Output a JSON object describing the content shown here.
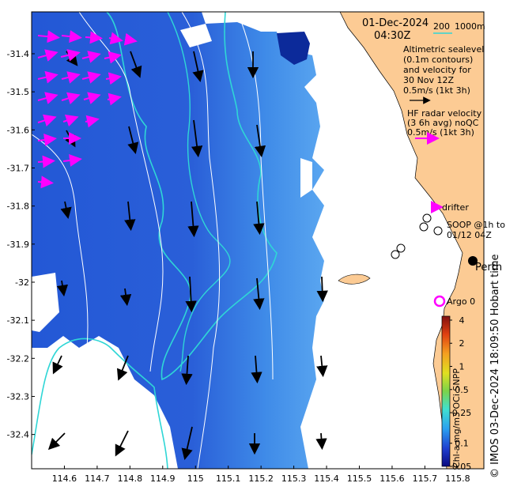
{
  "title": {
    "date": "01-Dec-2024",
    "time": "04:30Z"
  },
  "isobaths": {
    "a": "200",
    "b": "1000m",
    "color": "#2fd6d6"
  },
  "legends": {
    "altimetry_lines": [
      "Altimetric sealevel",
      "(0.1m contours)",
      "and velocity for",
      "30 Nov 12Z",
      "0.5m/s (1kt 3h)"
    ],
    "hf_lines": [
      "HF radar velocity",
      "(3 6h avg) noQC",
      "0.5m/s (1kt 3h)"
    ],
    "drifter": "drifter",
    "soop_lines": [
      "SOOP @1h to",
      "01/12 04Z"
    ],
    "city": "Perth",
    "argo": "Argo 0",
    "hf_color": "#ff00ff",
    "argo_color": "#ff00ff"
  },
  "colorbar": {
    "label": "Chl-a mg/m3 OCi SNPP",
    "ticks": [
      "4",
      "2",
      "1",
      "0.5",
      "0.25",
      "0.1",
      "0.05"
    ]
  },
  "credit": "© IMOS 03-Dec-2024 18:09:50 Hobart time",
  "axes": {
    "x_ticks": [
      "114.6",
      "114.7",
      "114.8",
      "114.9",
      "115",
      "115.1",
      "115.2",
      "115.3",
      "115.4",
      "115.5",
      "115.6",
      "115.7",
      "115.8"
    ],
    "y_ticks": [
      "-31.4",
      "-31.5",
      "-31.6",
      "-31.7",
      "-31.8",
      "-31.9",
      "-32",
      "-32.1",
      "-32.2",
      "-32.3",
      "-32.4"
    ],
    "x_range": [
      114.5,
      115.88
    ],
    "y_range": [
      -32.49,
      -31.29
    ]
  },
  "colors": {
    "land": "#fccb94",
    "ocean_dark": "#1f4fc6",
    "ocean_light": "#3b86e8",
    "isobath": "#2fd6d6"
  }
}
